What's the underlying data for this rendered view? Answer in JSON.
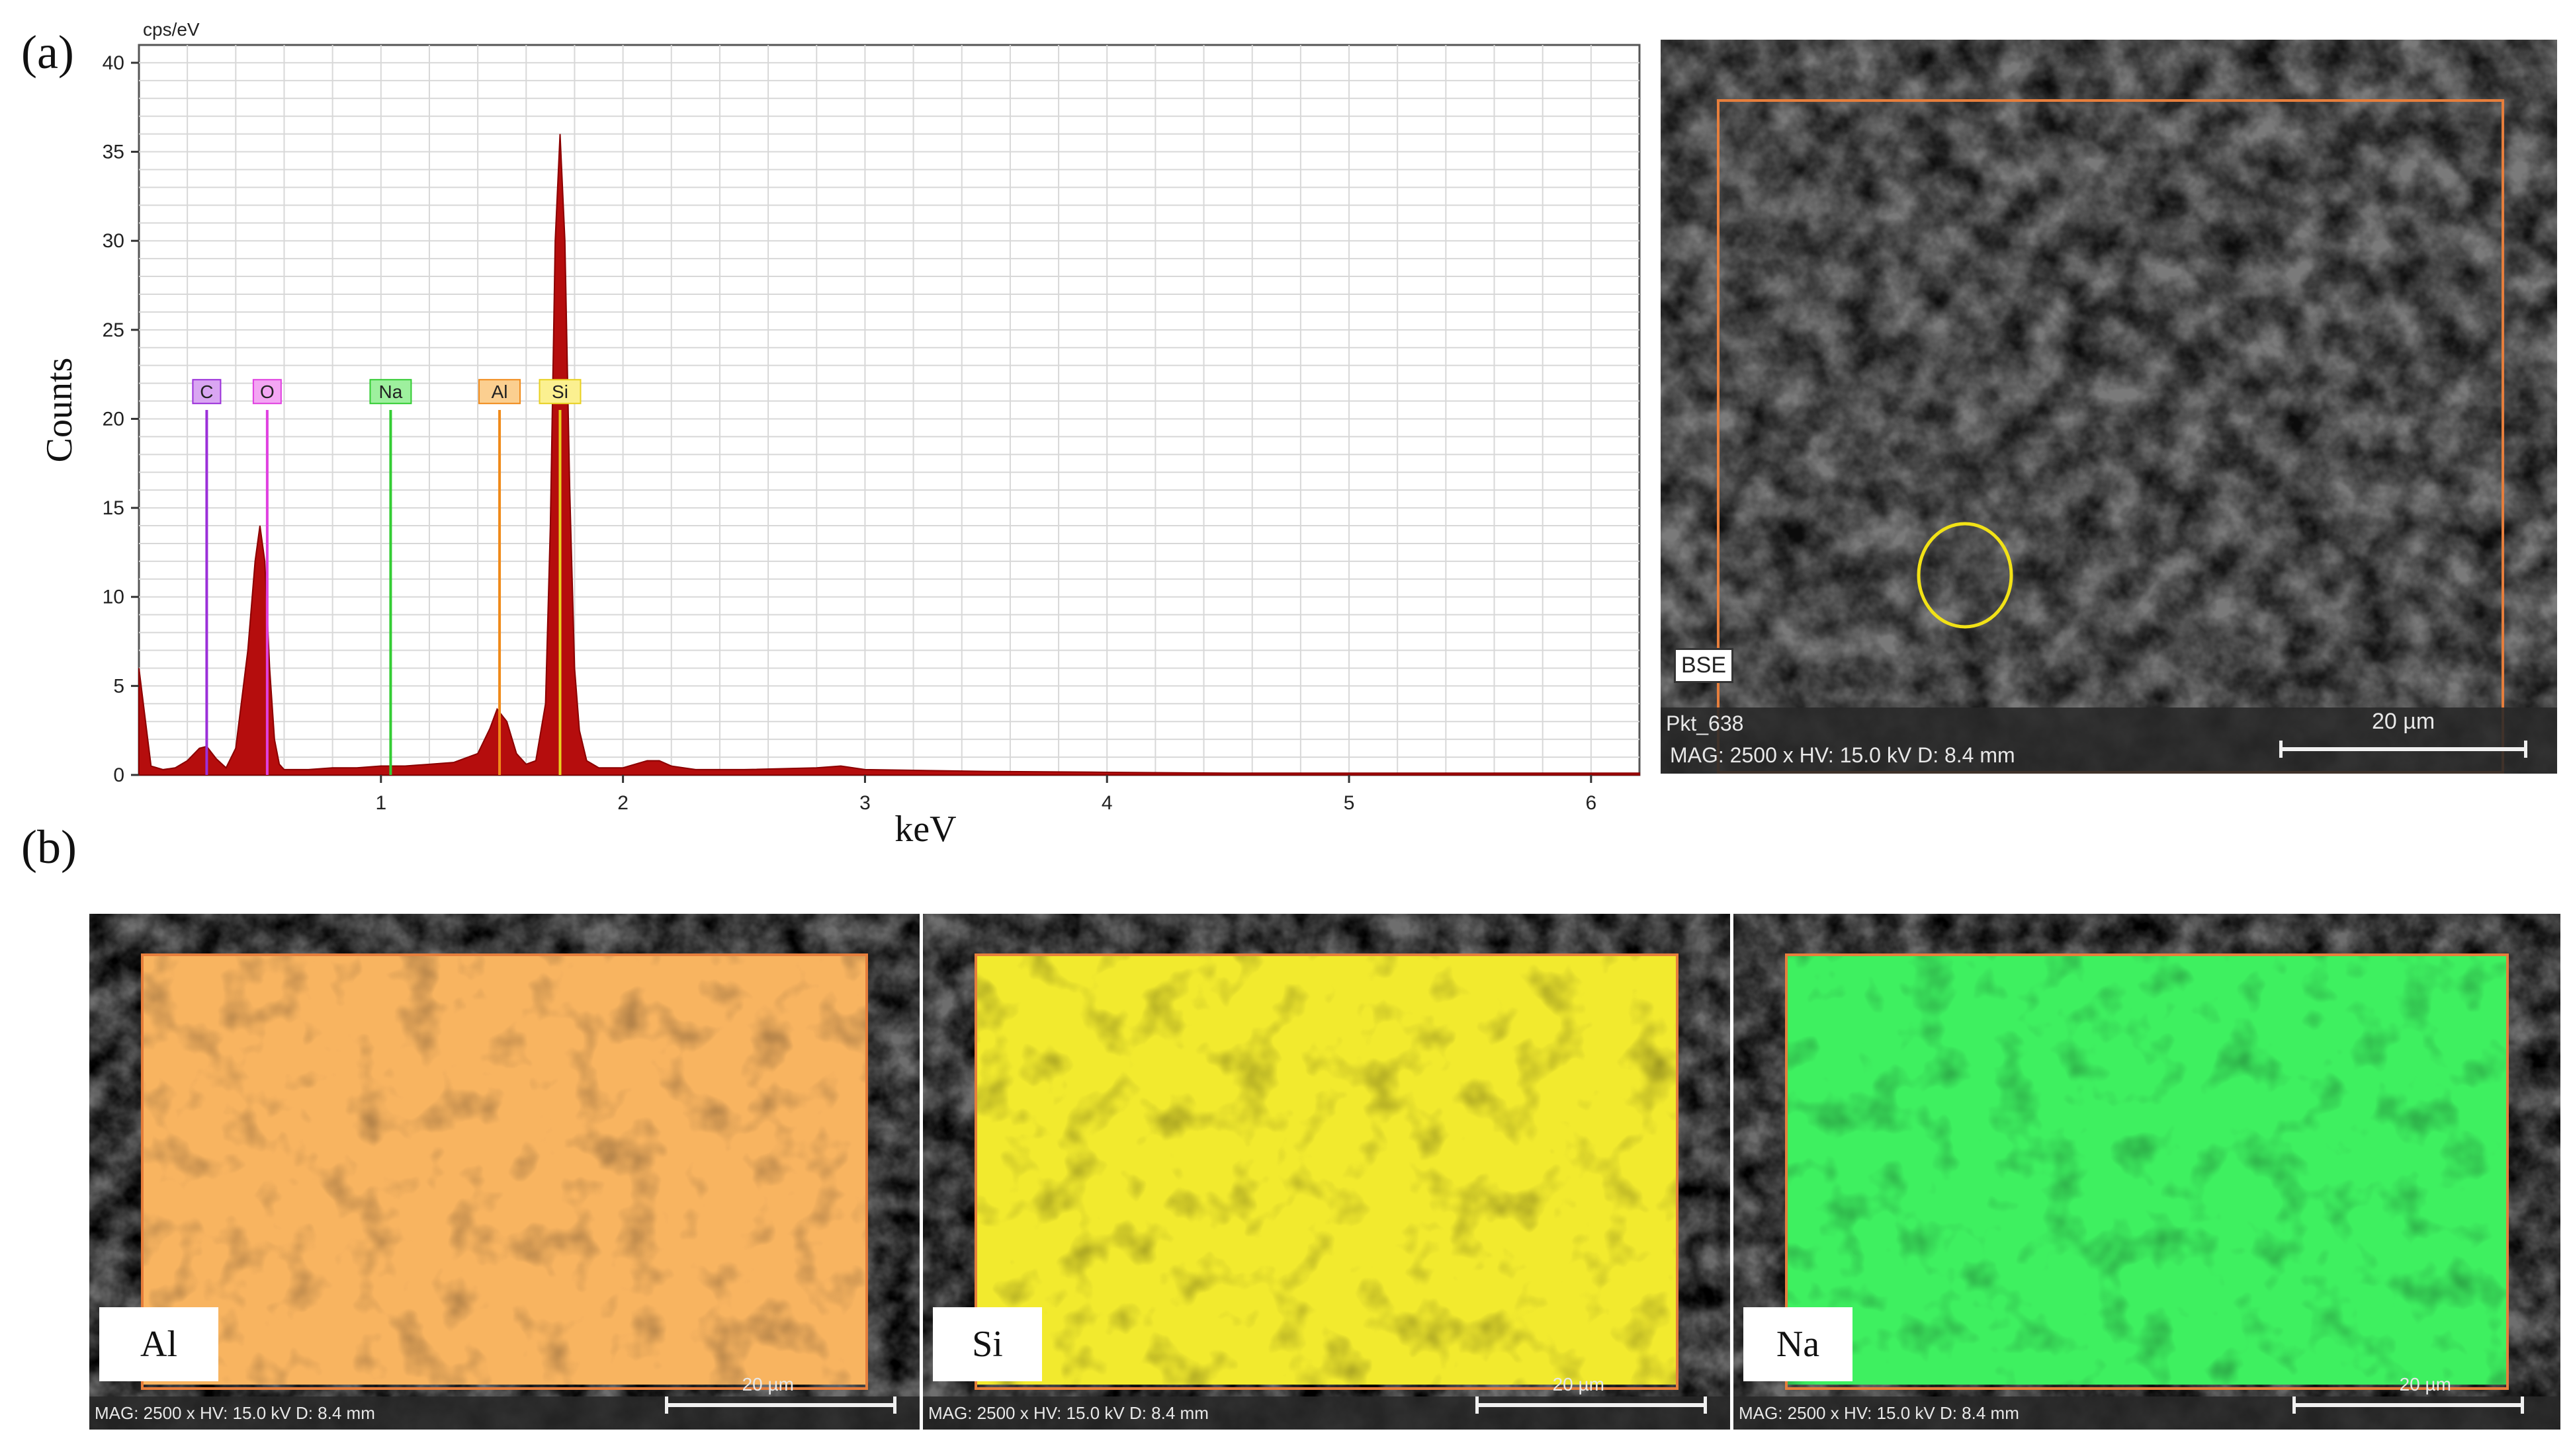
{
  "panels": {
    "a_label": "(a)",
    "b_label": "(b)"
  },
  "chart_data": {
    "type": "line",
    "xlabel": "keV",
    "ylabel": "Counts",
    "y_unit": "cps/eV",
    "xlim": [
      0,
      6.2
    ],
    "ylim": [
      0,
      41
    ],
    "x_ticks": [
      1,
      2,
      3,
      4,
      5,
      6
    ],
    "y_ticks": [
      0,
      5,
      10,
      15,
      20,
      25,
      30,
      35,
      40
    ],
    "grid": true,
    "fill_color": "#b50d0d",
    "series": [
      {
        "x": [
          0.0,
          0.05,
          0.1,
          0.15,
          0.2,
          0.25,
          0.28,
          0.32,
          0.36,
          0.4,
          0.45,
          0.48,
          0.5,
          0.52,
          0.54,
          0.56,
          0.58,
          0.6,
          0.63,
          0.7,
          0.8,
          0.9,
          1.0,
          1.1,
          1.2,
          1.3,
          1.4,
          1.45,
          1.48,
          1.52,
          1.56,
          1.6,
          1.64,
          1.68,
          1.7,
          1.72,
          1.74,
          1.76,
          1.78,
          1.8,
          1.82,
          1.85,
          1.9,
          2.0,
          2.1,
          2.15,
          2.2,
          2.3,
          2.5,
          2.8,
          2.9,
          3.0,
          3.5,
          4.0,
          4.5,
          5.0,
          5.5,
          6.0,
          6.2
        ],
        "y": [
          6.0,
          0.5,
          0.3,
          0.4,
          0.8,
          1.5,
          1.6,
          0.9,
          0.4,
          1.5,
          7.0,
          12.0,
          14.0,
          12.0,
          6.0,
          2.0,
          0.6,
          0.3,
          0.3,
          0.3,
          0.4,
          0.4,
          0.5,
          0.5,
          0.6,
          0.7,
          1.2,
          2.6,
          3.7,
          3.0,
          1.2,
          0.6,
          0.8,
          4.0,
          14.0,
          30.0,
          36.0,
          30.0,
          16.0,
          6.0,
          2.5,
          0.8,
          0.4,
          0.4,
          0.8,
          0.8,
          0.5,
          0.3,
          0.3,
          0.4,
          0.5,
          0.3,
          0.2,
          0.15,
          0.1,
          0.1,
          0.1,
          0.1,
          0.1
        ]
      }
    ],
    "element_markers": [
      {
        "label": "C",
        "x": 0.28,
        "color": "#9b30d9",
        "bg": "#d9a6f2"
      },
      {
        "label": "O",
        "x": 0.53,
        "color": "#e040e0",
        "bg": "#f3a6f3"
      },
      {
        "label": "Na",
        "x": 1.04,
        "color": "#33cc33",
        "bg": "#9ef09e"
      },
      {
        "label": "Al",
        "x": 1.49,
        "color": "#f08a1a",
        "bg": "#fbcf90"
      },
      {
        "label": "Si",
        "x": 1.74,
        "color": "#e8d020",
        "bg": "#fbf090"
      }
    ]
  },
  "sem_main": {
    "detector": "BSE",
    "point_label": "Pkt_638",
    "meta": "MAG: 2500 x  HV: 15.0 kV  D: 8.4 mm",
    "scale": "20 µm"
  },
  "maps": [
    {
      "label": "Al",
      "color": "#f8b460",
      "meta": "MAG: 2500 x  HV: 15.0 kV  D: 8.4 mm",
      "scale": "20 µm"
    },
    {
      "label": "Si",
      "color": "#f2ea2e",
      "meta": "MAG: 2500 x  HV: 15.0 kV  D: 8.4 mm",
      "scale": "20 µm"
    },
    {
      "label": "Na",
      "color": "#3ef060",
      "meta": "MAG: 2500 x  HV: 15.0 kV  D: 8.4 mm",
      "scale": "20 µm"
    }
  ]
}
